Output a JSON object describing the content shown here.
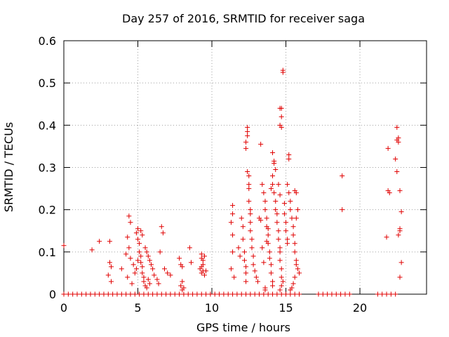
{
  "chart_data": {
    "type": "scatter",
    "title": "Day 257 of 2016, SRMTID for receiver saga",
    "xlabel": "GPS time / hours",
    "ylabel": "SRMTID / TECUs",
    "xlim": [
      0,
      24.5
    ],
    "ylim": [
      0,
      0.6
    ],
    "x_ticks": [
      0,
      5,
      10,
      15,
      20
    ],
    "y_ticks": [
      0,
      0.1,
      0.2,
      0.3,
      0.4,
      0.5,
      0.6
    ],
    "x_tick_labels": [
      "0",
      "5",
      "10",
      "15",
      "20"
    ],
    "y_tick_labels": [
      "0",
      "0.1",
      "0.2",
      "0.3",
      "0.4",
      "0.5",
      "0.6"
    ],
    "grid": true,
    "marker": "plus",
    "series": [
      {
        "name": "SRMTID",
        "color": "#e00000",
        "points": [
          [
            0.0,
            0.115
          ],
          [
            1.9,
            0.105
          ],
          [
            2.4,
            0.125
          ],
          [
            3.1,
            0.125
          ],
          [
            3.1,
            0.075
          ],
          [
            3.2,
            0.065
          ],
          [
            3.0,
            0.045
          ],
          [
            3.2,
            0.03
          ],
          [
            3.9,
            0.06
          ],
          [
            4.2,
            0.095
          ],
          [
            4.3,
            0.04
          ],
          [
            4.4,
            0.185
          ],
          [
            4.5,
            0.17
          ],
          [
            4.3,
            0.135
          ],
          [
            4.4,
            0.11
          ],
          [
            4.5,
            0.085
          ],
          [
            4.7,
            0.07
          ],
          [
            4.8,
            0.05
          ],
          [
            4.6,
            0.025
          ],
          [
            4.9,
            0.145
          ],
          [
            5.0,
            0.155
          ],
          [
            5.0,
            0.13
          ],
          [
            5.1,
            0.12
          ],
          [
            5.1,
            0.1
          ],
          [
            5.2,
            0.09
          ],
          [
            5.2,
            0.075
          ],
          [
            5.3,
            0.065
          ],
          [
            5.3,
            0.05
          ],
          [
            5.4,
            0.04
          ],
          [
            5.4,
            0.03
          ],
          [
            5.5,
            0.02
          ],
          [
            5.6,
            0.015
          ],
          [
            5.0,
            0.08
          ],
          [
            4.9,
            0.06
          ],
          [
            5.2,
            0.15
          ],
          [
            5.3,
            0.14
          ],
          [
            5.5,
            0.11
          ],
          [
            5.6,
            0.1
          ],
          [
            5.7,
            0.09
          ],
          [
            5.8,
            0.08
          ],
          [
            5.9,
            0.07
          ],
          [
            6.0,
            0.06
          ],
          [
            6.1,
            0.045
          ],
          [
            5.7,
            0.035
          ],
          [
            5.8,
            0.025
          ],
          [
            6.3,
            0.035
          ],
          [
            6.4,
            0.025
          ],
          [
            6.5,
            0.1
          ],
          [
            6.6,
            0.16
          ],
          [
            6.7,
            0.145
          ],
          [
            6.8,
            0.06
          ],
          [
            7.0,
            0.05
          ],
          [
            7.2,
            0.045
          ],
          [
            7.8,
            0.085
          ],
          [
            7.9,
            0.07
          ],
          [
            8.0,
            0.065
          ],
          [
            8.0,
            0.03
          ],
          [
            7.9,
            0.02
          ],
          [
            8.1,
            0.015
          ],
          [
            8.0,
            0.01
          ],
          [
            8.5,
            0.11
          ],
          [
            8.6,
            0.075
          ],
          [
            9.3,
            0.095
          ],
          [
            9.3,
            0.085
          ],
          [
            9.4,
            0.08
          ],
          [
            9.4,
            0.07
          ],
          [
            9.3,
            0.065
          ],
          [
            9.2,
            0.06
          ],
          [
            9.4,
            0.055
          ],
          [
            9.3,
            0.05
          ],
          [
            9.5,
            0.045
          ],
          [
            9.5,
            0.09
          ],
          [
            9.6,
            0.055
          ],
          [
            11.4,
            0.21
          ],
          [
            11.4,
            0.19
          ],
          [
            11.3,
            0.17
          ],
          [
            11.4,
            0.14
          ],
          [
            11.4,
            0.1
          ],
          [
            11.3,
            0.06
          ],
          [
            11.5,
            0.04
          ],
          [
            11.8,
            0.11
          ],
          [
            11.9,
            0.09
          ],
          [
            12.0,
            0.18
          ],
          [
            12.1,
            0.16
          ],
          [
            12.1,
            0.13
          ],
          [
            12.2,
            0.1
          ],
          [
            12.2,
            0.08
          ],
          [
            12.3,
            0.065
          ],
          [
            12.3,
            0.05
          ],
          [
            12.3,
            0.03
          ],
          [
            12.3,
            0.36
          ],
          [
            12.3,
            0.345
          ],
          [
            12.4,
            0.395
          ],
          [
            12.4,
            0.385
          ],
          [
            12.4,
            0.375
          ],
          [
            12.4,
            0.29
          ],
          [
            12.5,
            0.28
          ],
          [
            12.5,
            0.26
          ],
          [
            12.5,
            0.25
          ],
          [
            12.5,
            0.22
          ],
          [
            12.6,
            0.2
          ],
          [
            12.6,
            0.19
          ],
          [
            12.6,
            0.17
          ],
          [
            12.6,
            0.15
          ],
          [
            12.7,
            0.13
          ],
          [
            12.7,
            0.11
          ],
          [
            12.8,
            0.09
          ],
          [
            12.8,
            0.07
          ],
          [
            12.9,
            0.055
          ],
          [
            13.0,
            0.04
          ],
          [
            13.1,
            0.03
          ],
          [
            13.2,
            0.18
          ],
          [
            13.3,
            0.175
          ],
          [
            13.4,
            0.11
          ],
          [
            13.5,
            0.075
          ],
          [
            13.3,
            0.355
          ],
          [
            13.4,
            0.26
          ],
          [
            13.5,
            0.24
          ],
          [
            13.6,
            0.22
          ],
          [
            13.6,
            0.2
          ],
          [
            13.7,
            0.18
          ],
          [
            13.7,
            0.16
          ],
          [
            13.8,
            0.14
          ],
          [
            13.8,
            0.12
          ],
          [
            13.9,
            0.1
          ],
          [
            13.9,
            0.085
          ],
          [
            14.0,
            0.07
          ],
          [
            14.0,
            0.05
          ],
          [
            14.1,
            0.03
          ],
          [
            14.1,
            0.02
          ],
          [
            13.6,
            0.015
          ],
          [
            13.6,
            0.01
          ],
          [
            13.7,
            0.125
          ],
          [
            13.8,
            0.155
          ],
          [
            14.0,
            0.25
          ],
          [
            14.1,
            0.28
          ],
          [
            14.1,
            0.26
          ],
          [
            14.2,
            0.315
          ],
          [
            14.3,
            0.295
          ],
          [
            14.1,
            0.335
          ],
          [
            14.2,
            0.31
          ],
          [
            14.2,
            0.24
          ],
          [
            14.3,
            0.22
          ],
          [
            14.3,
            0.2
          ],
          [
            14.4,
            0.19
          ],
          [
            14.4,
            0.17
          ],
          [
            14.5,
            0.15
          ],
          [
            14.5,
            0.13
          ],
          [
            14.6,
            0.11
          ],
          [
            14.6,
            0.1
          ],
          [
            14.6,
            0.08
          ],
          [
            14.7,
            0.06
          ],
          [
            14.7,
            0.04
          ],
          [
            14.8,
            0.03
          ],
          [
            14.7,
            0.02
          ],
          [
            14.6,
            0.01
          ],
          [
            14.6,
            0.44
          ],
          [
            14.7,
            0.42
          ],
          [
            14.6,
            0.4
          ],
          [
            14.7,
            0.395
          ],
          [
            14.5,
            0.26
          ],
          [
            14.6,
            0.235
          ],
          [
            14.7,
            0.44
          ],
          [
            14.8,
            0.53
          ],
          [
            14.8,
            0.525
          ],
          [
            14.9,
            0.215
          ],
          [
            14.9,
            0.19
          ],
          [
            15.0,
            0.17
          ],
          [
            15.0,
            0.15
          ],
          [
            15.1,
            0.13
          ],
          [
            15.1,
            0.12
          ],
          [
            15.2,
            0.33
          ],
          [
            15.2,
            0.32
          ],
          [
            15.1,
            0.26
          ],
          [
            15.2,
            0.24
          ],
          [
            15.3,
            0.22
          ],
          [
            15.3,
            0.2
          ],
          [
            15.4,
            0.18
          ],
          [
            15.5,
            0.16
          ],
          [
            15.5,
            0.14
          ],
          [
            15.6,
            0.12
          ],
          [
            15.6,
            0.1
          ],
          [
            15.7,
            0.08
          ],
          [
            15.7,
            0.07
          ],
          [
            15.8,
            0.06
          ],
          [
            15.9,
            0.05
          ],
          [
            15.6,
            0.245
          ],
          [
            15.7,
            0.24
          ],
          [
            15.8,
            0.2
          ],
          [
            15.7,
            0.18
          ],
          [
            15.6,
            0.04
          ],
          [
            15.5,
            0.025
          ],
          [
            15.4,
            0.015
          ],
          [
            15.3,
            0.01
          ],
          [
            18.8,
            0.28
          ],
          [
            18.8,
            0.2
          ],
          [
            21.8,
            0.135
          ],
          [
            21.9,
            0.345
          ],
          [
            21.9,
            0.245
          ],
          [
            22.0,
            0.24
          ],
          [
            22.4,
            0.32
          ],
          [
            22.5,
            0.29
          ],
          [
            22.5,
            0.395
          ],
          [
            22.5,
            0.365
          ],
          [
            22.6,
            0.36
          ],
          [
            22.6,
            0.37
          ],
          [
            22.6,
            0.14
          ],
          [
            22.7,
            0.15
          ],
          [
            22.7,
            0.155
          ],
          [
            22.7,
            0.245
          ],
          [
            22.8,
            0.195
          ],
          [
            22.8,
            0.075
          ],
          [
            22.7,
            0.04
          ],
          [
            0.0,
            0.0
          ],
          [
            0.3,
            0.0
          ],
          [
            0.6,
            0.0
          ],
          [
            0.9,
            0.0
          ],
          [
            1.2,
            0.0
          ],
          [
            1.5,
            0.0
          ],
          [
            1.8,
            0.0
          ],
          [
            2.1,
            0.0
          ],
          [
            2.4,
            0.0
          ],
          [
            2.7,
            0.0
          ],
          [
            3.0,
            0.0
          ],
          [
            3.3,
            0.0
          ],
          [
            3.6,
            0.0
          ],
          [
            3.9,
            0.0
          ],
          [
            4.2,
            0.0
          ],
          [
            4.5,
            0.0
          ],
          [
            4.8,
            0.0
          ],
          [
            5.1,
            0.0
          ],
          [
            5.4,
            0.0
          ],
          [
            5.7,
            0.0
          ],
          [
            6.0,
            0.0
          ],
          [
            6.3,
            0.0
          ],
          [
            6.6,
            0.0
          ],
          [
            6.9,
            0.0
          ],
          [
            7.2,
            0.0
          ],
          [
            7.5,
            0.0
          ],
          [
            7.8,
            0.0
          ],
          [
            8.1,
            0.0
          ],
          [
            8.4,
            0.0
          ],
          [
            8.7,
            0.0
          ],
          [
            9.0,
            0.0
          ],
          [
            9.3,
            0.0
          ],
          [
            9.6,
            0.0
          ],
          [
            9.9,
            0.0
          ],
          [
            10.2,
            0.0
          ],
          [
            10.5,
            0.0
          ],
          [
            10.8,
            0.0
          ],
          [
            11.1,
            0.0
          ],
          [
            11.4,
            0.0
          ],
          [
            11.7,
            0.0
          ],
          [
            12.0,
            0.0
          ],
          [
            12.3,
            0.0
          ],
          [
            12.6,
            0.0
          ],
          [
            12.9,
            0.0
          ],
          [
            13.2,
            0.0
          ],
          [
            13.5,
            0.0
          ],
          [
            13.8,
            0.0
          ],
          [
            14.1,
            0.0
          ],
          [
            14.4,
            0.0
          ],
          [
            14.7,
            0.0
          ],
          [
            15.0,
            0.0
          ],
          [
            15.3,
            0.0
          ],
          [
            15.6,
            0.0
          ],
          [
            15.9,
            0.0
          ],
          [
            17.2,
            0.0
          ],
          [
            17.5,
            0.0
          ],
          [
            17.8,
            0.0
          ],
          [
            18.1,
            0.0
          ],
          [
            18.4,
            0.0
          ],
          [
            18.7,
            0.0
          ],
          [
            19.0,
            0.0
          ],
          [
            19.3,
            0.0
          ],
          [
            21.2,
            0.0
          ],
          [
            21.5,
            0.0
          ],
          [
            21.8,
            0.0
          ],
          [
            22.1,
            0.0
          ],
          [
            22.4,
            0.0
          ]
        ]
      }
    ]
  }
}
